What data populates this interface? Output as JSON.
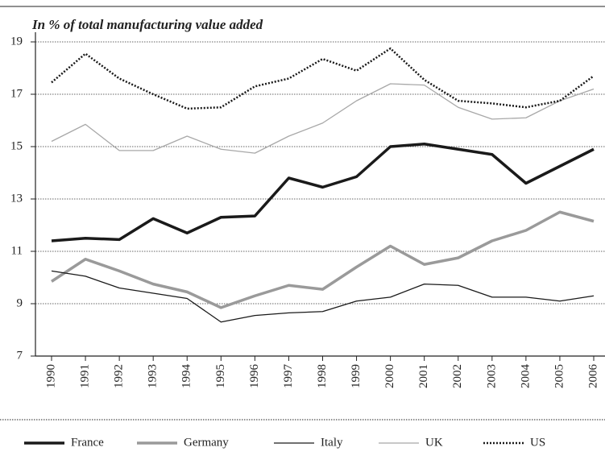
{
  "chart_data": {
    "type": "line",
    "title": "In % of total manufacturing value added",
    "categories": [
      "1990",
      "1991",
      "1992",
      "1993",
      "1994",
      "1995",
      "1996",
      "1997",
      "1998",
      "1999",
      "2000",
      "2001",
      "2002",
      "2003",
      "2004",
      "2005",
      "2006"
    ],
    "ylim": [
      7,
      19
    ],
    "yticks": [
      7,
      9,
      11,
      13,
      15,
      17,
      19
    ],
    "grid": true,
    "series": [
      {
        "name": "France",
        "color": "#1a1a1a",
        "width": 3.5,
        "dash": "solid",
        "values": [
          11.4,
          11.5,
          11.45,
          12.25,
          11.7,
          12.3,
          12.35,
          13.8,
          13.45,
          13.85,
          15.0,
          15.1,
          14.9,
          14.7,
          13.6,
          14.25,
          14.9
        ]
      },
      {
        "name": "Germany",
        "color": "#9a9a9a",
        "width": 3.5,
        "dash": "solid",
        "values": [
          9.85,
          10.7,
          10.25,
          9.75,
          9.45,
          8.85,
          9.3,
          9.7,
          9.55,
          10.4,
          11.2,
          10.5,
          10.75,
          11.4,
          11.8,
          12.5,
          12.15
        ]
      },
      {
        "name": "Italy",
        "color": "#1a1a1a",
        "width": 1.3,
        "dash": "solid",
        "values": [
          10.25,
          10.05,
          9.6,
          9.4,
          9.2,
          8.3,
          8.55,
          8.65,
          8.7,
          9.1,
          9.25,
          9.75,
          9.7,
          9.25,
          9.25,
          9.1,
          9.3
        ]
      },
      {
        "name": "UK",
        "color": "#a8a8a8",
        "width": 1.3,
        "dash": "solid",
        "values": [
          15.2,
          15.85,
          14.85,
          14.85,
          15.4,
          14.9,
          14.75,
          15.4,
          15.9,
          16.75,
          17.4,
          17.35,
          16.5,
          16.05,
          16.1,
          16.75,
          17.2
        ]
      },
      {
        "name": "US",
        "color": "#1a1a1a",
        "width": 2.5,
        "dash": "dotted",
        "values": [
          17.45,
          18.55,
          17.6,
          17.0,
          16.45,
          16.5,
          17.3,
          17.6,
          18.35,
          17.9,
          18.75,
          17.55,
          16.75,
          16.65,
          16.5,
          16.75,
          17.7
        ]
      }
    ]
  }
}
